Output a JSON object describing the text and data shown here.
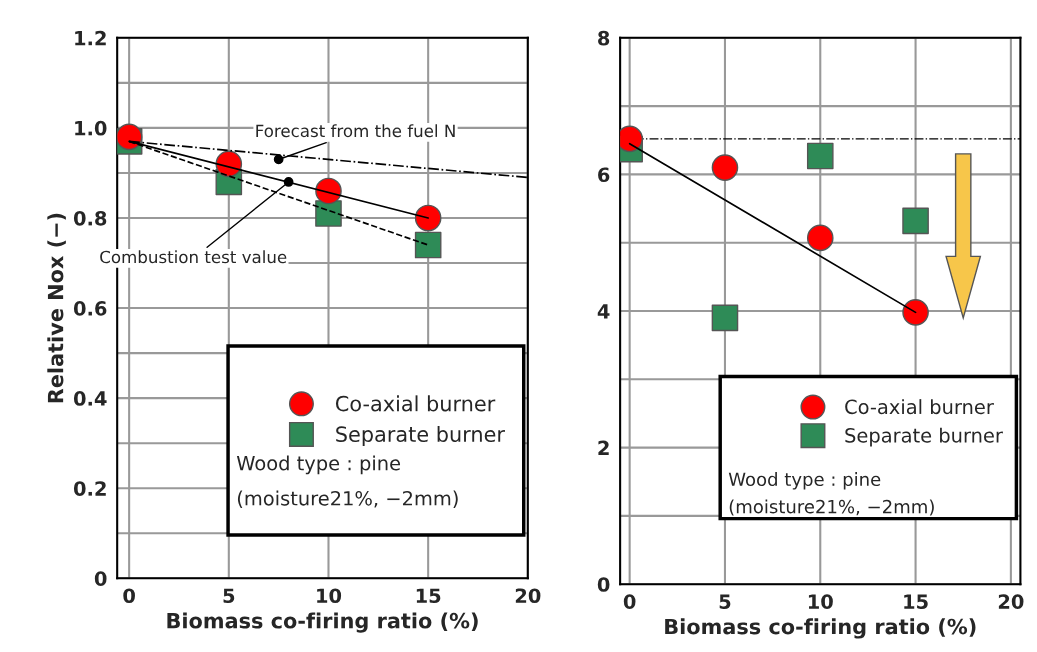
{
  "chart_data": [
    {
      "type": "scatter",
      "xlabel": "Biomass co-firing ratio (%)",
      "ylabel": "Relative Nox (−)",
      "xlim": [
        -0.6,
        20
      ],
      "ylim": [
        0,
        1.2
      ],
      "xticks": [
        0,
        5,
        10,
        15,
        20
      ],
      "yticks": [
        0,
        {
          "value": 0.1,
          "label": null
        },
        0.2,
        {
          "value": 0.3,
          "label": null
        },
        0.4,
        {
          "value": 0.5,
          "label": null
        },
        0.6,
        {
          "value": 0.7,
          "label": null
        },
        0.8,
        {
          "value": 0.9,
          "label": null
        },
        {
          "value": 1.0,
          "label": "1.0"
        },
        {
          "value": 1.1,
          "label": null
        },
        1.2
      ],
      "grid": true,
      "legend": "bottom right",
      "series": [
        {
          "type": "line",
          "x": [
            0,
            20
          ],
          "values": [
            0.97,
            0.89
          ],
          "color": "#000000",
          "line_style": "dashdot",
          "marker": "none"
        },
        {
          "type": "line",
          "x": [
            0,
            15
          ],
          "values": [
            0.97,
            0.8
          ],
          "color": "#000000",
          "line_style": "solid",
          "marker": "none"
        },
        {
          "type": "line",
          "x": [
            0,
            15
          ],
          "values": [
            0.97,
            0.74
          ],
          "color": "#000000",
          "line_style": "dashed",
          "marker": "none"
        },
        {
          "name": "Co-axial burner",
          "x": [
            0,
            5,
            10,
            15
          ],
          "values": [
            0.98,
            0.92,
            0.86,
            0.8
          ],
          "color": "#ff0000",
          "marker": "circle"
        },
        {
          "name": "Separate burner",
          "x": [
            0,
            5,
            10,
            15
          ],
          "values": [
            0.97,
            0.88,
            0.81,
            0.74
          ],
          "color": "#2e8b57",
          "marker": "square"
        }
      ],
      "annotations": [
        {
          "text": "Forecast from the fuel N",
          "x": 7.5,
          "y": 0.93
        },
        {
          "text": "Combustion test value",
          "x": 8,
          "y": 0.88
        },
        "Wood type : pine",
        "(moisture21%, −2mm)"
      ]
    },
    {
      "type": "scatter",
      "xlabel": "Biomass co-firing ratio (%)",
      "xlim": [
        -0.5,
        20.5
      ],
      "ylim": [
        0,
        8
      ],
      "xticks": [
        0,
        5,
        10,
        15,
        20
      ],
      "yticks": [
        0,
        {
          "value": 1,
          "label": null
        },
        2,
        {
          "value": 3,
          "label": null
        },
        4,
        {
          "value": 5,
          "label": null
        },
        6,
        {
          "value": 7,
          "label": null
        },
        8
      ],
      "grid": true,
      "legend": "bottom right",
      "ref_lines": [
        {
          "axis": "y",
          "value": 6.52,
          "color": "#000000",
          "line_style": "dashdot"
        }
      ],
      "series": [
        {
          "type": "line",
          "x": [
            0,
            15
          ],
          "values": [
            6.45,
            3.98
          ],
          "color": "#000000",
          "line_style": "solid",
          "marker": "none"
        },
        {
          "name": "Co-axial burner",
          "x": [
            0,
            5,
            10,
            15
          ],
          "values": [
            6.52,
            6.1,
            5.07,
            3.98
          ],
          "color": "#ff0000",
          "marker": "circle"
        },
        {
          "name": "Separate burner",
          "x": [
            0,
            5,
            10,
            15
          ],
          "values": [
            6.37,
            3.9,
            6.27,
            5.32
          ],
          "color": "#2e8b57",
          "marker": "square"
        }
      ],
      "annotations": [
        "Wood type : pine",
        "(moisture21%, −2mm)"
      ]
    }
  ]
}
